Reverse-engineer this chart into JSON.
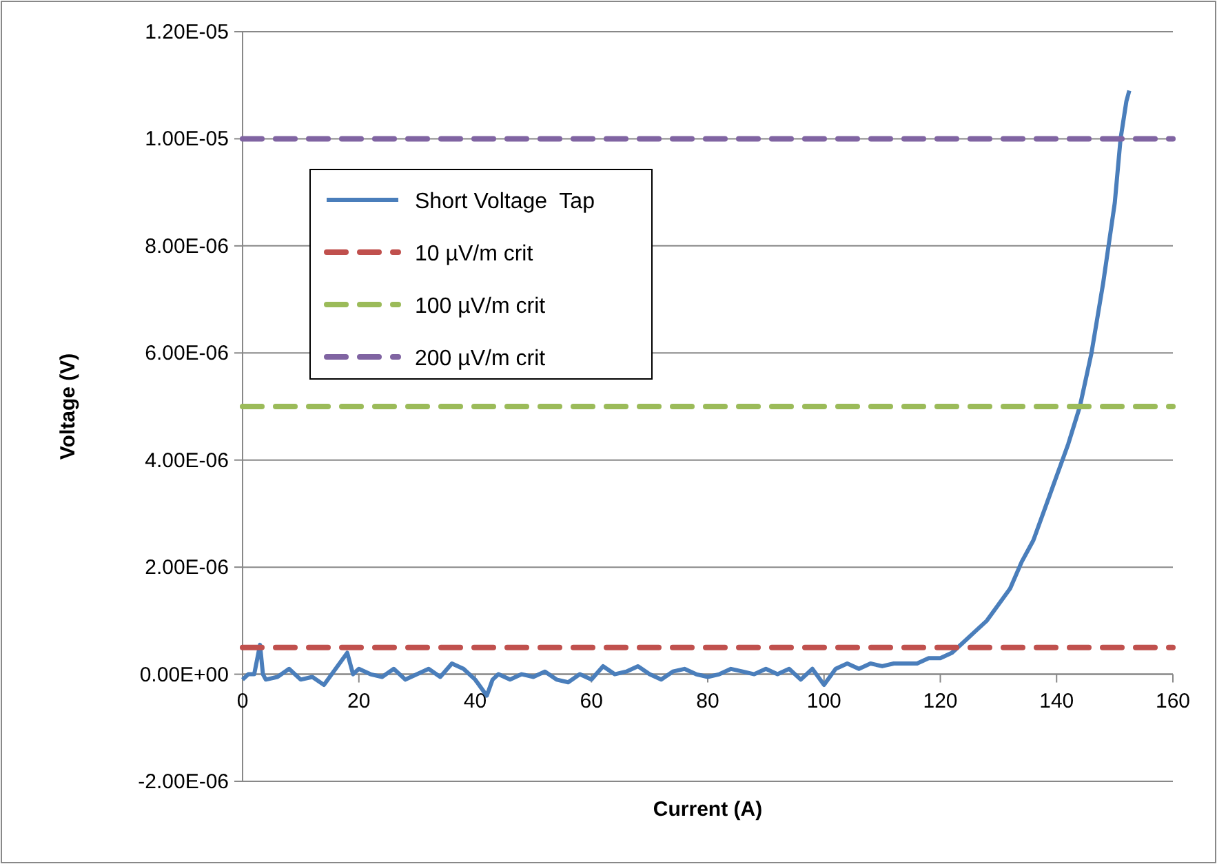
{
  "chart_data": {
    "type": "line",
    "xlabel": "Current (A)",
    "ylabel": "Voltage (V)",
    "xlim": [
      0,
      160
    ],
    "xticks": [
      0,
      20,
      40,
      60,
      80,
      100,
      120,
      140,
      160
    ],
    "ylim": [
      -2e-06,
      1.2e-05
    ],
    "yticks": [
      {
        "value": -2e-06,
        "label": "-2.00E-06"
      },
      {
        "value": 0,
        "label": "0.00E+00"
      },
      {
        "value": 2e-06,
        "label": "2.00E-06"
      },
      {
        "value": 4e-06,
        "label": "4.00E-06"
      },
      {
        "value": 6e-06,
        "label": "6.00E-06"
      },
      {
        "value": 8e-06,
        "label": "8.00E-06"
      },
      {
        "value": 1e-05,
        "label": "1.00E-05"
      },
      {
        "value": 1.2e-05,
        "label": "1.20E-05"
      }
    ],
    "grid": "y",
    "legend": "top left",
    "marker": "none",
    "series": [
      {
        "name": "Short Voltage  Tap",
        "color": "#4a7ebb",
        "line_style": "solid",
        "x": [
          0,
          1,
          2,
          3,
          3.5,
          4,
          6,
          8,
          10,
          12,
          14,
          16,
          18,
          19,
          20,
          22,
          24,
          26,
          28,
          30,
          32,
          34,
          36,
          38,
          40,
          42,
          43,
          44,
          46,
          48,
          50,
          52,
          54,
          56,
          58,
          60,
          62,
          64,
          66,
          68,
          70,
          72,
          74,
          76,
          78,
          80,
          82,
          84,
          86,
          88,
          90,
          92,
          94,
          96,
          98,
          100,
          102,
          104,
          106,
          108,
          110,
          112,
          114,
          116,
          118,
          120,
          122,
          124,
          126,
          128,
          130,
          132,
          134,
          136,
          138,
          140,
          142,
          144,
          146,
          148,
          150,
          151,
          152,
          152.5
        ],
        "values": [
          -1e-07,
          0,
          0,
          5.5e-07,
          0,
          -1e-07,
          -5e-08,
          1e-07,
          -1e-07,
          -5e-08,
          -2e-07,
          1e-07,
          4e-07,
          0,
          1e-07,
          0,
          -5e-08,
          1e-07,
          -1e-07,
          0,
          1e-07,
          -5e-08,
          2e-07,
          1e-07,
          -1e-07,
          -4e-07,
          -1e-07,
          0,
          -1e-07,
          0,
          -5e-08,
          5e-08,
          -1e-07,
          -1.5e-07,
          0,
          -1e-07,
          1.5e-07,
          0,
          5e-08,
          1.5e-07,
          0,
          -1e-07,
          5e-08,
          1e-07,
          0,
          -5e-08,
          0,
          1e-07,
          5e-08,
          0,
          1e-07,
          0,
          1e-07,
          -1e-07,
          1e-07,
          -2e-07,
          1e-07,
          2e-07,
          1e-07,
          2e-07,
          1.5e-07,
          2e-07,
          2e-07,
          2e-07,
          3e-07,
          3e-07,
          4e-07,
          6e-07,
          8e-07,
          1e-06,
          1.3e-06,
          1.6e-06,
          2.1e-06,
          2.5e-06,
          3.1e-06,
          3.7e-06,
          4.3e-06,
          5e-06,
          6e-06,
          7.3e-06,
          8.8e-06,
          1e-05,
          1.07e-05,
          1.09e-05
        ]
      },
      {
        "name": "10 µV/m crit",
        "color": "#c0504d",
        "line_style": "dashed",
        "x": [
          0,
          160
        ],
        "values": [
          5e-07,
          5e-07
        ]
      },
      {
        "name": "100 µV/m crit",
        "color": "#9bbb59",
        "line_style": "dashed",
        "x": [
          0,
          160
        ],
        "values": [
          5e-06,
          5e-06
        ]
      },
      {
        "name": "200 µV/m crit",
        "color": "#8064a2",
        "line_style": "dashed",
        "x": [
          0,
          160
        ],
        "values": [
          1e-05,
          1e-05
        ]
      }
    ]
  }
}
